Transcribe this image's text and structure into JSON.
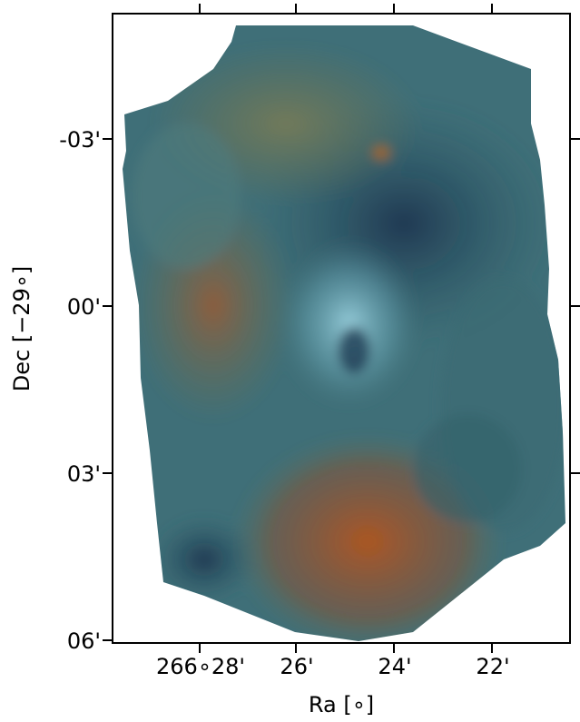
{
  "image": {
    "description_colors": {
      "teal_dark": "#2f5c68",
      "teal_mid": "#4d7f88",
      "teal_light": "#7fb6c4",
      "orange": "#a2552a",
      "olive": "#70704a",
      "deep_blue": "#1f3d55"
    }
  },
  "axes": {
    "xlabel": "Ra [∘]",
    "ylabel": "Dec [−29∘]",
    "xticks": [
      "266∘28'",
      "26'",
      "24'",
      "22'"
    ],
    "yticks": [
      "-03'",
      "00'",
      "03'",
      "06'"
    ]
  }
}
